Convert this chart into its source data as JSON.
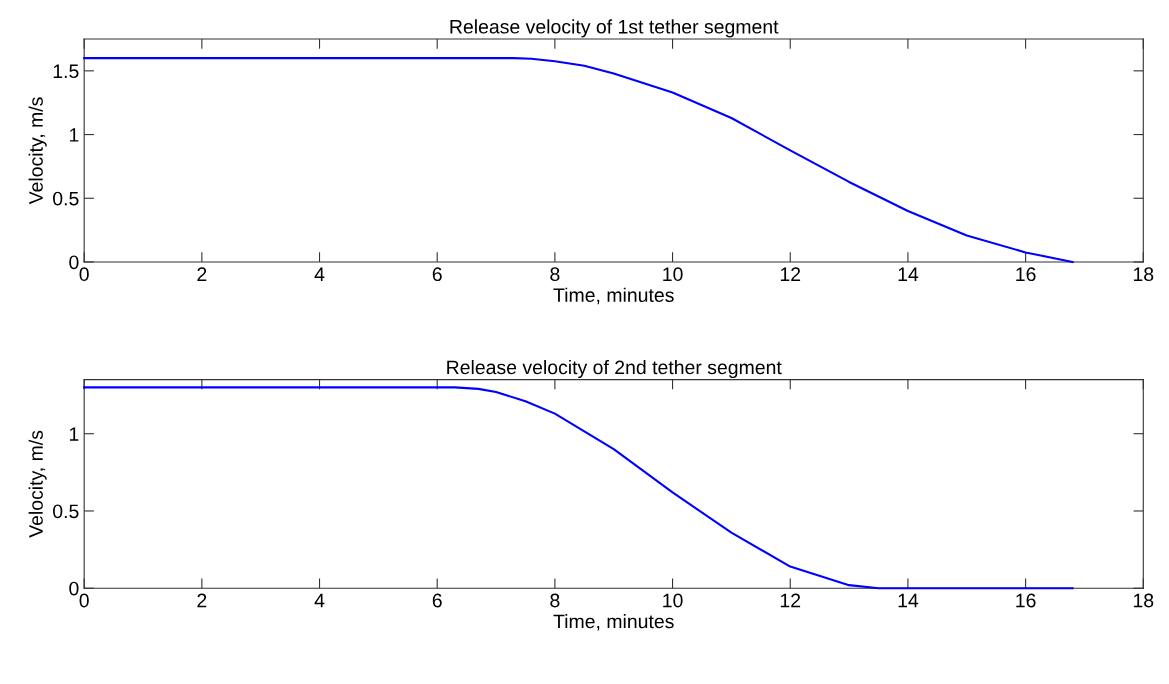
{
  "chart_data": [
    {
      "type": "line",
      "title": "Release velocity of 1st tether segment",
      "xlabel": "Time, minutes",
      "ylabel": "Velocity, m/s",
      "series": [
        {
          "color": "#0000ff",
          "x": [
            0,
            7.3,
            7.6,
            8,
            8.5,
            9,
            10,
            11,
            12,
            13,
            14,
            15,
            16,
            16.8
          ],
          "values": [
            1.6,
            1.6,
            1.595,
            1.575,
            1.54,
            1.48,
            1.33,
            1.13,
            0.876,
            0.628,
            0.4,
            0.208,
            0.075,
            0
          ]
        }
      ],
      "xlim": [
        0,
        18
      ],
      "xticks": [
        0,
        2,
        4,
        6,
        8,
        10,
        12,
        14,
        16,
        18
      ],
      "ylim": [
        0,
        1.75
      ],
      "yticks": [
        0,
        0.5,
        1,
        1.5
      ],
      "grid": false
    },
    {
      "type": "line",
      "title": "Release velocity of 2nd tether segment",
      "xlabel": "Time, minutes",
      "ylabel": "Velocity, m/s",
      "series": [
        {
          "color": "#0000ff",
          "x": [
            0,
            6.3,
            6.7,
            7,
            7.5,
            8,
            9,
            10,
            11,
            12,
            13,
            13.5,
            16.8
          ],
          "values": [
            1.3,
            1.3,
            1.29,
            1.27,
            1.21,
            1.13,
            0.9,
            0.62,
            0.36,
            0.14,
            0.02,
            0,
            0
          ]
        }
      ],
      "xlim": [
        0,
        18
      ],
      "xticks": [
        0,
        2,
        4,
        6,
        8,
        10,
        12,
        14,
        16,
        18
      ],
      "ylim": [
        0,
        1.35
      ],
      "yticks": [
        0,
        0.5,
        1
      ],
      "grid": false
    }
  ]
}
